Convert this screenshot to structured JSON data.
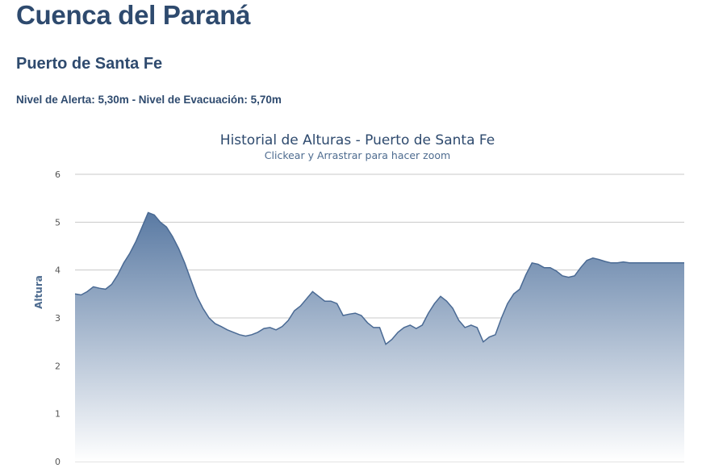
{
  "header": {
    "title": "Cuenca del Paraná",
    "station": "Puerto de Santa Fe",
    "levels": "Nivel de Alerta: 5,30m - Nivel de Evacuación: 5,70m"
  },
  "colors": {
    "heading": "#2e4a6e",
    "area_top": "#5a7aa3",
    "area_bottom": "#ffffff",
    "line": "#4a6a94",
    "grid": "#c8c8c8"
  },
  "chart_data": {
    "type": "area",
    "title": "Historial de Alturas - Puerto de Santa Fe",
    "subtitle": "Clickear y Arrastrar para hacer zoom",
    "ylabel": "Altura",
    "ylim": [
      0,
      6
    ],
    "yticks": [
      0,
      1,
      2,
      3,
      4,
      5,
      6
    ],
    "grid": true,
    "legend": "none",
    "x": [
      0,
      1,
      2,
      3,
      4,
      5,
      6,
      7,
      8,
      9,
      10,
      11,
      12,
      13,
      14,
      15,
      16,
      17,
      18,
      19,
      20,
      21,
      22,
      23,
      24,
      25,
      26,
      27,
      28,
      29,
      30,
      31,
      32,
      33,
      34,
      35,
      36,
      37,
      38,
      39,
      40,
      41,
      42,
      43,
      44,
      45,
      46,
      47,
      48,
      49,
      50,
      51,
      52,
      53,
      54,
      55,
      56,
      57,
      58,
      59,
      60,
      61,
      62,
      63,
      64,
      65,
      66,
      67,
      68,
      69,
      70,
      71,
      72,
      73,
      74,
      75,
      76,
      77,
      78,
      79,
      80,
      81,
      82,
      83,
      84,
      85,
      86,
      87,
      88,
      89,
      90,
      91,
      92,
      93,
      94,
      95,
      96,
      97,
      98,
      99,
      100
    ],
    "series": [
      {
        "values": [
          3.5,
          3.48,
          3.55,
          3.65,
          3.62,
          3.6,
          3.7,
          3.9,
          4.15,
          4.35,
          4.6,
          4.9,
          5.2,
          5.15,
          5.0,
          4.9,
          4.7,
          4.45,
          4.15,
          3.8,
          3.45,
          3.2,
          3.0,
          2.88,
          2.82,
          2.75,
          2.7,
          2.65,
          2.62,
          2.65,
          2.7,
          2.78,
          2.8,
          2.75,
          2.82,
          2.95,
          3.15,
          3.25,
          3.4,
          3.55,
          3.45,
          3.35,
          3.35,
          3.3,
          3.05,
          3.08,
          3.1,
          3.05,
          2.9,
          2.8,
          2.8,
          2.45,
          2.55,
          2.7,
          2.8,
          2.85,
          2.78,
          2.85,
          3.1,
          3.3,
          3.45,
          3.35,
          3.2,
          2.95,
          2.8,
          2.85,
          2.8,
          2.5,
          2.6,
          2.65,
          3.0,
          3.3,
          3.5,
          3.6,
          3.9,
          4.15,
          4.12,
          4.05,
          4.05,
          3.98,
          3.88,
          3.85,
          3.88,
          4.05,
          4.2,
          4.25,
          4.22,
          4.18,
          4.15,
          4.15,
          4.17,
          4.15,
          4.15,
          4.15,
          4.15,
          4.15,
          4.15,
          4.15,
          4.15,
          4.15,
          4.15
        ]
      }
    ]
  }
}
